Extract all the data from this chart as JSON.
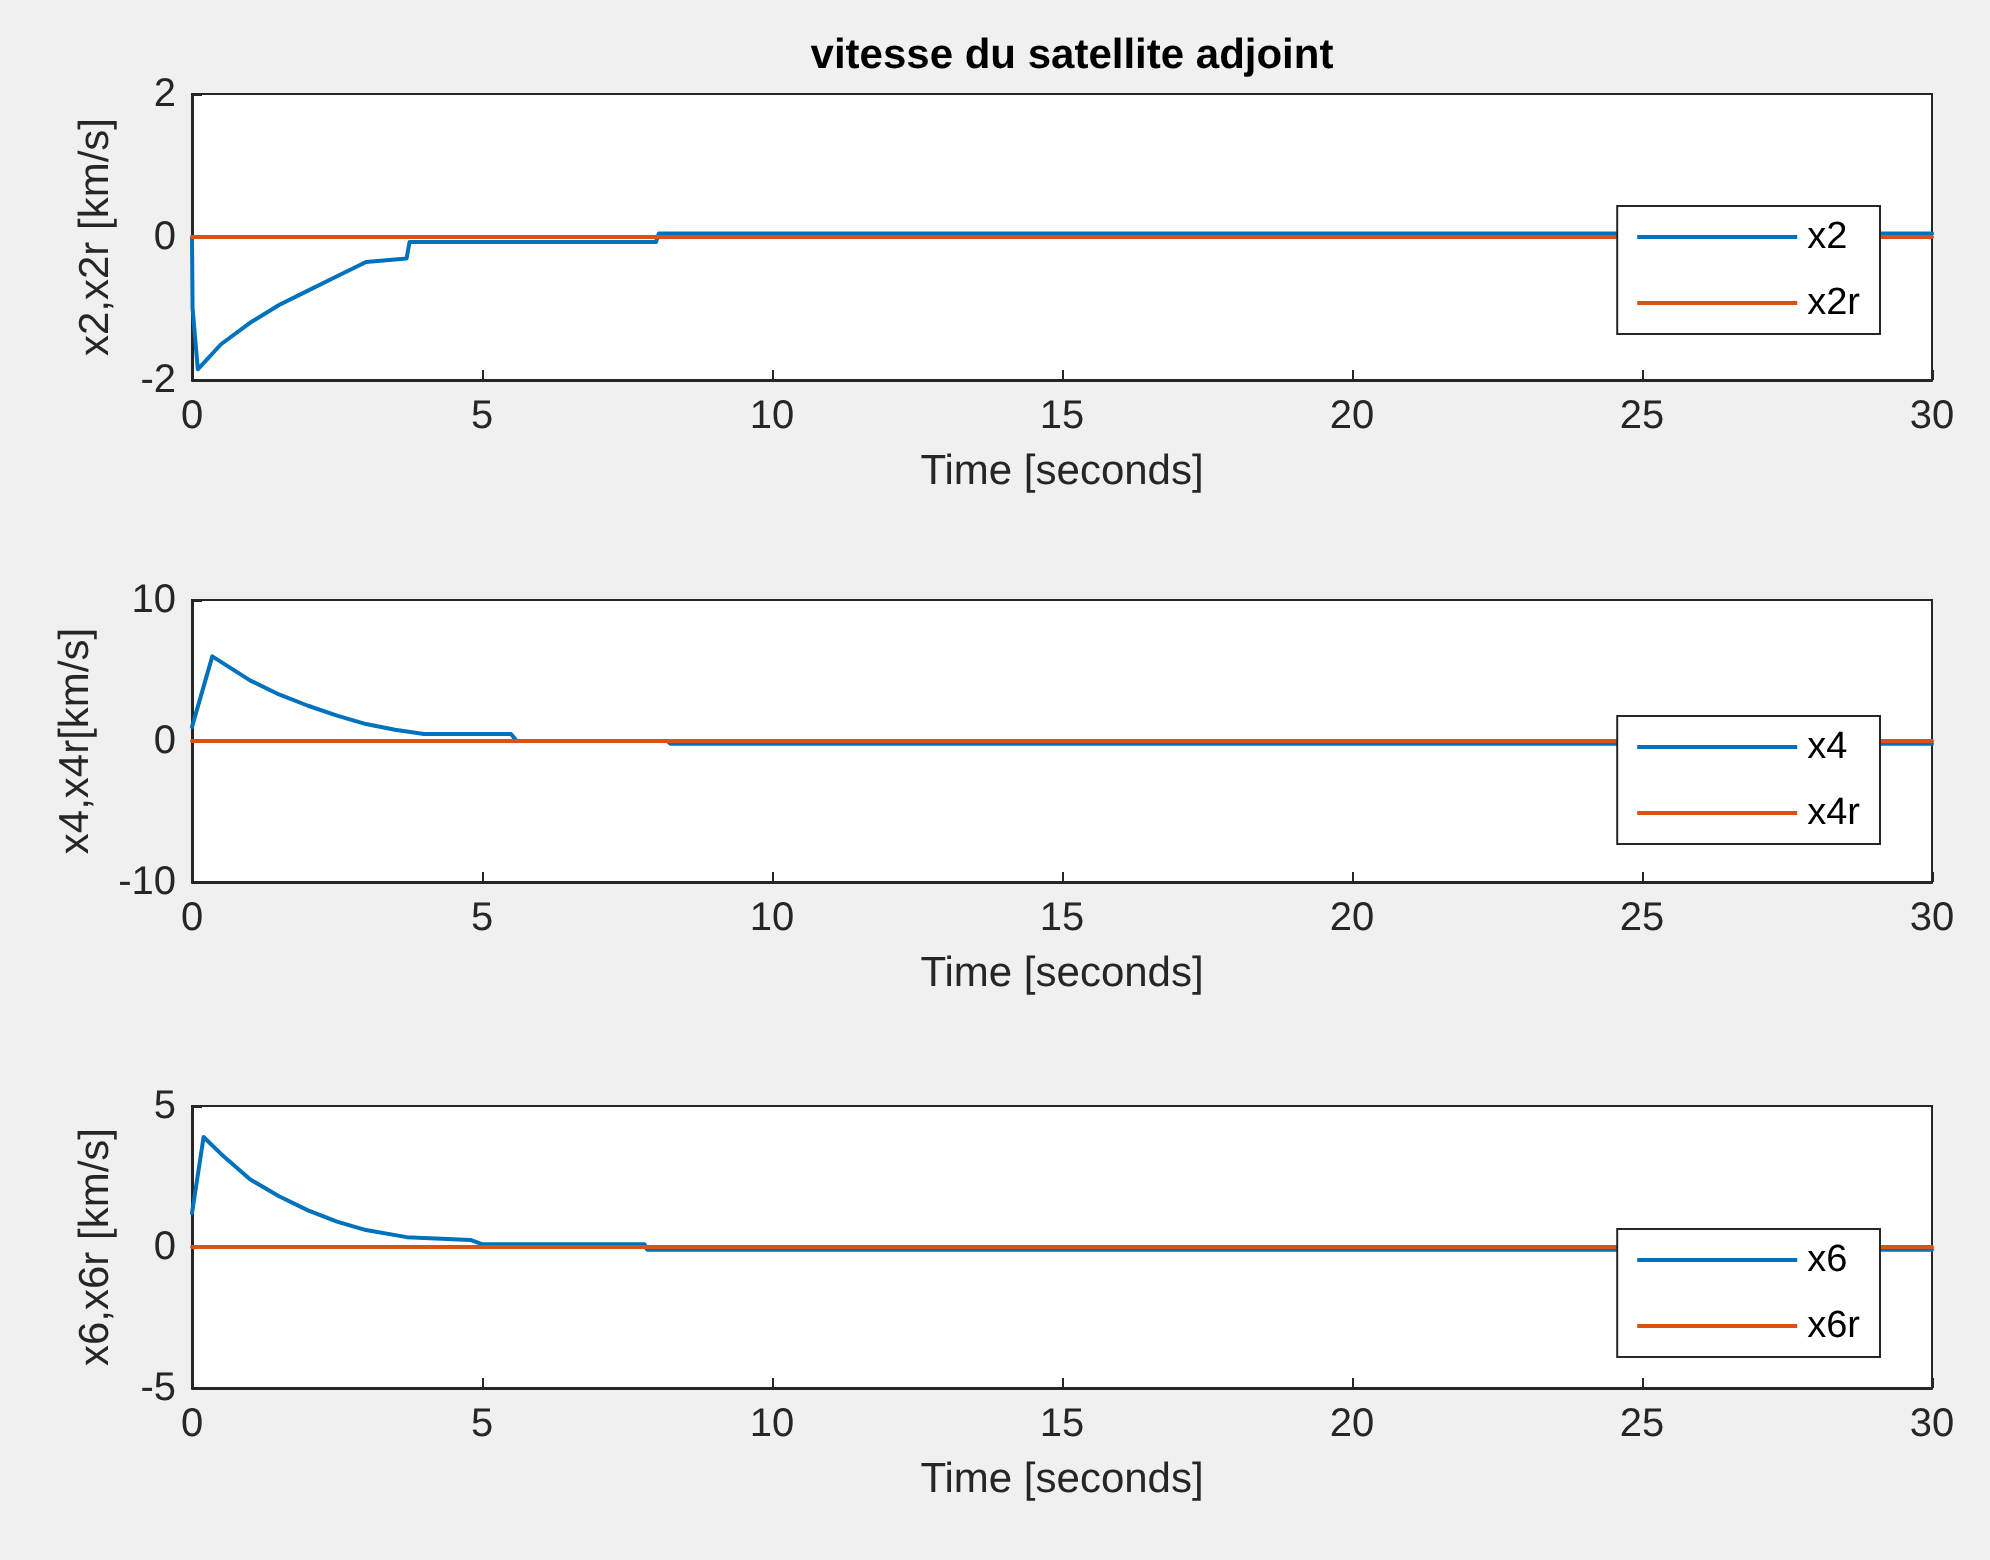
{
  "chart_data": [
    {
      "type": "line",
      "title": "vitesse du satellite adjoint",
      "xlabel": "Time [seconds]",
      "ylabel": "x2,x2r [km/s]",
      "xlim": [
        0,
        30
      ],
      "xticks": [
        0,
        5,
        10,
        15,
        20,
        25,
        30
      ],
      "ylim": [
        -2,
        2
      ],
      "yticks": [
        -2,
        0,
        2
      ],
      "grid": false,
      "legend": "right",
      "marker": "none",
      "line_style": "solid",
      "series": [
        {
          "name": "x2",
          "color": "#0072bd",
          "x": [
            0,
            0.01,
            0.1,
            0.5,
            1,
            1.5,
            2,
            2.5,
            3,
            3.7,
            3.75,
            8,
            8.05,
            30
          ],
          "values": [
            0,
            -1.0,
            -1.85,
            -1.5,
            -1.2,
            -0.95,
            -0.75,
            -0.55,
            -0.35,
            -0.3,
            -0.07,
            -0.07,
            0.05,
            0.05
          ]
        },
        {
          "name": "x2r",
          "color": "#d95319",
          "x": [
            0,
            30
          ],
          "values": [
            0,
            0
          ]
        }
      ]
    },
    {
      "type": "line",
      "xlabel": "Time [seconds]",
      "ylabel": "x4,x4r[km/s]",
      "xlim": [
        0,
        30
      ],
      "xticks": [
        0,
        5,
        10,
        15,
        20,
        25,
        30
      ],
      "ylim": [
        -10,
        10
      ],
      "yticks": [
        -10,
        0,
        10
      ],
      "grid": false,
      "legend": "right",
      "marker": "none",
      "line_style": "solid",
      "series": [
        {
          "name": "x4",
          "color": "#0072bd",
          "x": [
            0,
            0.35,
            1,
            1.5,
            2,
            2.5,
            3,
            3.5,
            4,
            5.5,
            5.6,
            8.2,
            8.25,
            30
          ],
          "values": [
            1,
            6,
            4.3,
            3.3,
            2.5,
            1.8,
            1.2,
            0.8,
            0.5,
            0.5,
            0,
            0,
            -0.2,
            -0.2
          ]
        },
        {
          "name": "x4r",
          "color": "#d95319",
          "x": [
            0,
            30
          ],
          "values": [
            0,
            0
          ]
        }
      ]
    },
    {
      "type": "line",
      "xlabel": "Time [seconds]",
      "ylabel": "x6,x6r [km/s]",
      "xlim": [
        0,
        30
      ],
      "xticks": [
        0,
        5,
        10,
        15,
        20,
        25,
        30
      ],
      "ylim": [
        -5,
        5
      ],
      "yticks": [
        -5,
        0,
        5
      ],
      "grid": false,
      "legend": "right",
      "marker": "none",
      "line_style": "solid",
      "series": [
        {
          "name": "x6",
          "color": "#0072bd",
          "x": [
            0,
            0.2,
            0.5,
            1,
            1.5,
            2,
            2.5,
            3,
            3.7,
            4.8,
            5,
            7.8,
            7.85,
            30
          ],
          "values": [
            1.2,
            3.9,
            3.3,
            2.4,
            1.8,
            1.3,
            0.9,
            0.6,
            0.35,
            0.25,
            0.1,
            0.1,
            -0.1,
            -0.1
          ]
        },
        {
          "name": "x6r",
          "color": "#d95319",
          "x": [
            0,
            30
          ],
          "values": [
            0,
            0
          ]
        }
      ]
    }
  ]
}
